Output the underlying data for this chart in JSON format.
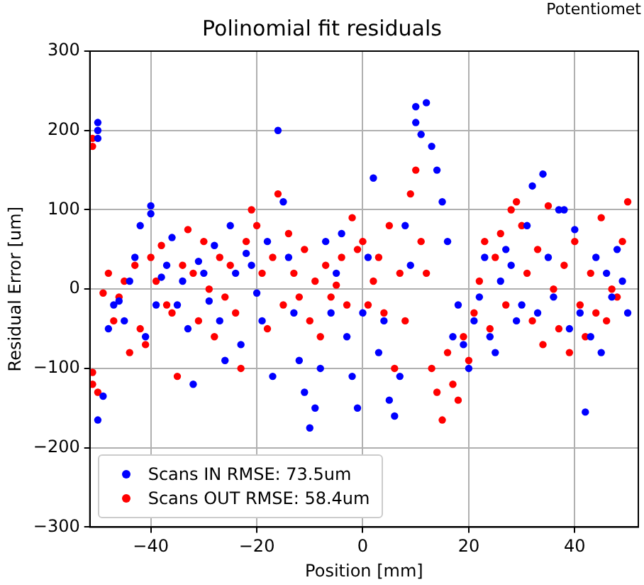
{
  "chart_data": {
    "type": "scatter",
    "title": "Polinomial fit residuals",
    "xlabel": "Position [mm]",
    "ylabel": "Residual Error [um]",
    "annotations": [
      "Potentiomet"
    ],
    "xlim": [
      -51.5,
      52
    ],
    "ylim": [
      -300,
      300
    ],
    "xticks": [
      {
        "value": -40,
        "label": "−40"
      },
      {
        "value": -20,
        "label": "−20"
      },
      0,
      20,
      40
    ],
    "yticks": [
      {
        "value": -300,
        "label": "−300"
      },
      {
        "value": -200,
        "label": "−200"
      },
      {
        "value": -100,
        "label": "−100"
      },
      0,
      100,
      200,
      300
    ],
    "grid": true,
    "legend": "bottom left",
    "marker": "circle",
    "series": [
      {
        "name": "Scans IN RMSE: 73.5um",
        "color": "#0000ff",
        "x": [
          -50,
          -50,
          -50,
          -50,
          -49,
          -48,
          -47,
          -46,
          -45,
          -44,
          -43,
          -42,
          -41,
          -40,
          -40,
          -39,
          -38,
          -37,
          -36,
          -35,
          -34,
          -33,
          -32,
          -31,
          -30,
          -29,
          -28,
          -27,
          -26,
          -25,
          -24,
          -23,
          -22,
          -21,
          -20,
          -19,
          -18,
          -17,
          -16,
          -15,
          -14,
          -13,
          -12,
          -11,
          -10,
          -9,
          -8,
          -7,
          -6,
          -5,
          -4,
          -3,
          -2,
          -1,
          0,
          1,
          2,
          3,
          4,
          5,
          6,
          7,
          8,
          9,
          10,
          10,
          11,
          12,
          13,
          14,
          15,
          16,
          17,
          18,
          19,
          20,
          21,
          22,
          23,
          24,
          25,
          26,
          27,
          28,
          29,
          30,
          31,
          32,
          33,
          34,
          35,
          36,
          37,
          38,
          39,
          40,
          41,
          42,
          43,
          44,
          45,
          46,
          47,
          48,
          49,
          50
        ],
        "values": [
          210,
          200,
          190,
          -165,
          -135,
          -50,
          -20,
          -15,
          -40,
          10,
          40,
          80,
          -60,
          105,
          95,
          -20,
          15,
          30,
          65,
          -20,
          10,
          -50,
          -120,
          35,
          20,
          -15,
          55,
          -40,
          -90,
          80,
          20,
          -70,
          45,
          30,
          -5,
          -40,
          60,
          -110,
          200,
          110,
          40,
          -30,
          -90,
          -130,
          -175,
          -150,
          -100,
          60,
          -30,
          20,
          70,
          -60,
          -110,
          -150,
          -30,
          40,
          140,
          -80,
          -40,
          -140,
          -160,
          -110,
          80,
          30,
          230,
          210,
          195,
          235,
          180,
          150,
          110,
          60,
          -60,
          -20,
          -70,
          -100,
          -40,
          -10,
          40,
          -60,
          -80,
          10,
          50,
          30,
          -40,
          -20,
          80,
          130,
          -30,
          145,
          40,
          -10,
          100,
          100,
          -50,
          75,
          -30,
          -155,
          -60,
          40,
          -80,
          20,
          -10,
          50,
          10,
          -30
        ]
      },
      {
        "name": "Scans OUT RMSE: 58.4um",
        "color": "#ff0000",
        "x": [
          -51,
          -51,
          -51,
          -51,
          -50,
          -49,
          -48,
          -47,
          -46,
          -45,
          -44,
          -43,
          -42,
          -41,
          -40,
          -39,
          -38,
          -37,
          -36,
          -35,
          -34,
          -33,
          -32,
          -31,
          -30,
          -29,
          -28,
          -27,
          -26,
          -25,
          -24,
          -23,
          -22,
          -21,
          -20,
          -19,
          -18,
          -17,
          -16,
          -15,
          -14,
          -13,
          -12,
          -11,
          -10,
          -9,
          -8,
          -7,
          -6,
          -5,
          -4,
          -3,
          -2,
          -1,
          0,
          1,
          2,
          3,
          4,
          5,
          6,
          7,
          8,
          9,
          10,
          11,
          12,
          13,
          14,
          15,
          16,
          17,
          18,
          19,
          20,
          21,
          22,
          23,
          24,
          25,
          26,
          27,
          28,
          29,
          30,
          31,
          32,
          33,
          34,
          35,
          36,
          37,
          38,
          39,
          40,
          41,
          42,
          43,
          44,
          45,
          46,
          47,
          48,
          49,
          50
        ],
        "values": [
          190,
          180,
          -105,
          -120,
          -130,
          -5,
          20,
          -40,
          -10,
          10,
          -80,
          30,
          -50,
          -70,
          40,
          10,
          55,
          -20,
          -30,
          -110,
          30,
          75,
          20,
          -40,
          60,
          0,
          -60,
          40,
          -10,
          30,
          -30,
          -100,
          60,
          100,
          80,
          20,
          -50,
          40,
          120,
          -20,
          70,
          20,
          -10,
          50,
          -40,
          10,
          -60,
          30,
          -10,
          5,
          40,
          -20,
          90,
          50,
          60,
          -20,
          10,
          40,
          -30,
          80,
          -100,
          20,
          -40,
          120,
          150,
          60,
          20,
          -100,
          -130,
          -165,
          -80,
          -120,
          -140,
          -60,
          -90,
          -30,
          10,
          60,
          -50,
          40,
          70,
          -20,
          100,
          110,
          80,
          20,
          -40,
          50,
          -70,
          105,
          0,
          -50,
          30,
          -80,
          60,
          -20,
          -60,
          20,
          -30,
          90,
          -40,
          0,
          -10,
          60,
          110
        ]
      }
    ]
  }
}
